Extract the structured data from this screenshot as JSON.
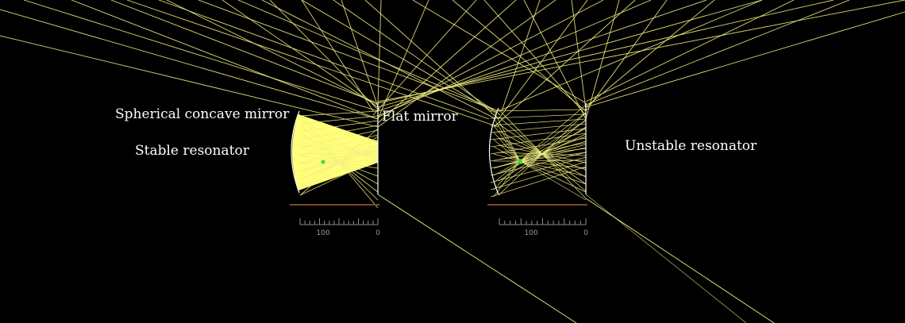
{
  "labels": {
    "concave_mirror": "Spherical concave mirror",
    "stable": "Stable resonator",
    "flat_mirror": "Flat mirror",
    "unstable": "Unstable resonator"
  },
  "rulers": [
    {
      "ticks": [
        "100",
        "0"
      ]
    },
    {
      "ticks": [
        "100",
        "0"
      ]
    }
  ],
  "colors": {
    "background": "#000000",
    "ray": "#f4f080",
    "beam_fill": "#ffff7a",
    "focus_point": "#3cdc3c",
    "mirror": "#ffffff",
    "ruler": "#8a8a8a",
    "baseline": "#7a4a1a"
  }
}
